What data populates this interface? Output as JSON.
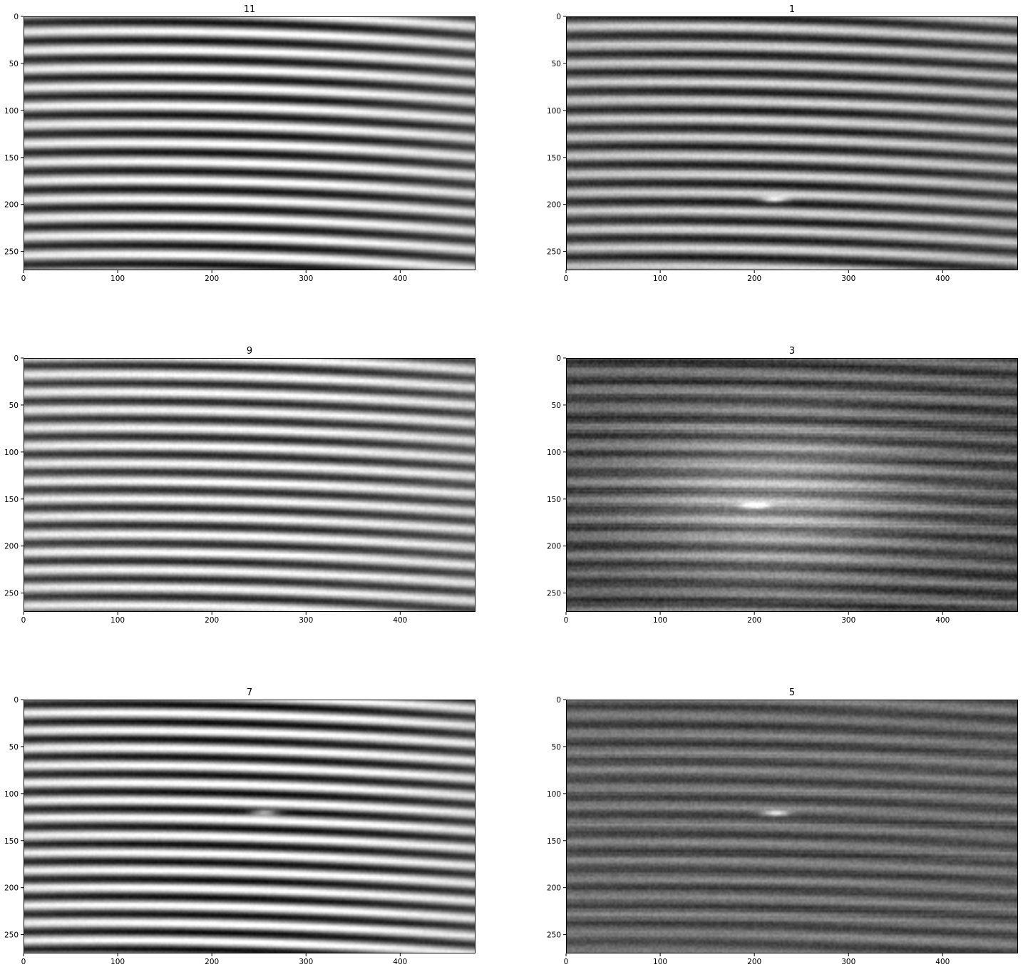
{
  "chart_data": [
    {
      "type": "heatmap",
      "title": "11",
      "xlim": [
        0,
        480
      ],
      "ylim": [
        270,
        0
      ],
      "xticks": [
        0,
        100,
        200,
        300,
        400
      ],
      "yticks": [
        0,
        50,
        100,
        150,
        200,
        250
      ],
      "xlabel": "",
      "ylabel": "",
      "colormap": "gray",
      "grid": false,
      "pattern": {
        "fringe_period_rows": 19.8,
        "phase": 0.9,
        "bow": 6,
        "contrast": 0.95,
        "noise": 0.05,
        "mean": 0.55
      }
    },
    {
      "type": "heatmap",
      "title": "1",
      "xlim": [
        0,
        480
      ],
      "ylim": [
        270,
        0
      ],
      "xticks": [
        0,
        100,
        200,
        300,
        400
      ],
      "yticks": [
        0,
        50,
        100,
        150,
        200,
        250
      ],
      "xlabel": "",
      "ylabel": "",
      "colormap": "gray",
      "grid": false,
      "pattern": {
        "fringe_period_rows": 19.6,
        "phase": 2.6,
        "bow": 5,
        "contrast": 0.75,
        "noise": 0.07,
        "mean": 0.48,
        "bright_spot": [
          220,
          194
        ]
      }
    },
    {
      "type": "heatmap",
      "title": "9",
      "xlim": [
        0,
        480
      ],
      "ylim": [
        270,
        0
      ],
      "xticks": [
        0,
        100,
        200,
        300,
        400
      ],
      "yticks": [
        0,
        50,
        100,
        150,
        200,
        250
      ],
      "xlabel": "",
      "ylabel": "",
      "colormap": "gray",
      "grid": false,
      "pattern": {
        "fringe_period_rows": 18.9,
        "phase": 0.2,
        "bow": 5,
        "contrast": 0.85,
        "noise": 0.07,
        "mean": 0.58
      }
    },
    {
      "type": "heatmap",
      "title": "3",
      "xlim": [
        0,
        480
      ],
      "ylim": [
        270,
        0
      ],
      "xticks": [
        0,
        100,
        200,
        300,
        400
      ],
      "yticks": [
        0,
        50,
        100,
        150,
        200,
        250
      ],
      "xlabel": "",
      "ylabel": "",
      "colormap": "gray",
      "grid": false,
      "pattern": {
        "fringe_period_rows": 19.5,
        "phase": 1.5,
        "bow": 4,
        "contrast": 0.35,
        "noise": 0.12,
        "mean": 0.32,
        "glow_center": [
          220,
          150
        ],
        "bright_spot": [
          200,
          156
        ]
      }
    },
    {
      "type": "heatmap",
      "title": "7",
      "xlim": [
        0,
        480
      ],
      "ylim": [
        270,
        0
      ],
      "xticks": [
        0,
        100,
        200,
        300,
        400
      ],
      "yticks": [
        0,
        50,
        100,
        150,
        200,
        250
      ],
      "xlabel": "",
      "ylabel": "",
      "colormap": "gray",
      "grid": false,
      "pattern": {
        "fringe_period_rows": 18.6,
        "phase": 1.2,
        "bow": 5,
        "contrast": 1.0,
        "noise": 0.06,
        "mean": 0.55,
        "bright_spot": [
          255,
          119
        ]
      }
    },
    {
      "type": "heatmap",
      "title": "5",
      "xlim": [
        0,
        480
      ],
      "ylim": [
        270,
        0
      ],
      "xticks": [
        0,
        100,
        200,
        300,
        400
      ],
      "yticks": [
        0,
        50,
        100,
        150,
        200,
        250
      ],
      "xlabel": "",
      "ylabel": "",
      "colormap": "gray",
      "grid": false,
      "pattern": {
        "fringe_period_rows": 19.2,
        "phase": 0.5,
        "bow": 4,
        "contrast": 0.3,
        "noise": 0.1,
        "mean": 0.38,
        "bright_spot": [
          222,
          120
        ]
      }
    }
  ]
}
